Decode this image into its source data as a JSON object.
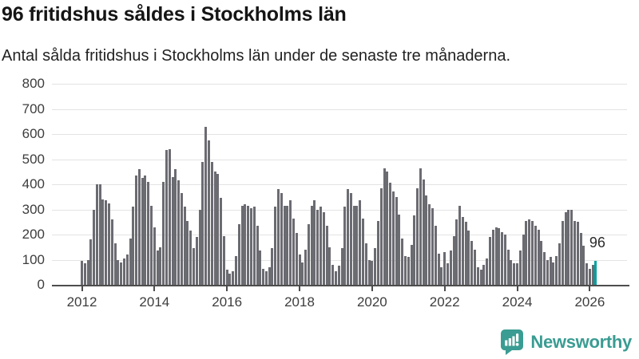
{
  "header": {
    "title": "96 fritidshus såldes i Stockholms län",
    "subtitle": "Antal sålda fritidshus i Stockholms län under de senaste tre månaderna."
  },
  "chart_data": {
    "type": "bar",
    "title": "96 fritidshus såldes i Stockholms län",
    "subtitle": "Antal sålda fritidshus i Stockholms län under de senaste tre månaderna.",
    "x_start_month": "2012-01",
    "x_end_month": "2026-03",
    "values": [
      95,
      85,
      100,
      180,
      300,
      400,
      400,
      340,
      335,
      325,
      260,
      165,
      100,
      90,
      105,
      120,
      185,
      310,
      435,
      460,
      425,
      435,
      410,
      315,
      230,
      135,
      150,
      410,
      535,
      540,
      430,
      460,
      415,
      365,
      310,
      255,
      215,
      145,
      190,
      300,
      490,
      630,
      575,
      490,
      450,
      440,
      345,
      195,
      60,
      45,
      55,
      115,
      240,
      315,
      320,
      315,
      305,
      310,
      235,
      135,
      65,
      55,
      70,
      145,
      310,
      380,
      365,
      315,
      315,
      335,
      265,
      205,
      120,
      90,
      140,
      240,
      315,
      335,
      300,
      310,
      290,
      235,
      150,
      80,
      55,
      75,
      145,
      310,
      380,
      365,
      315,
      315,
      335,
      265,
      165,
      100,
      95,
      145,
      255,
      385,
      465,
      450,
      405,
      370,
      350,
      280,
      185,
      115,
      110,
      160,
      275,
      385,
      465,
      420,
      355,
      320,
      305,
      235,
      125,
      70,
      130,
      85,
      135,
      195,
      260,
      315,
      270,
      250,
      215,
      175,
      140,
      70,
      60,
      80,
      105,
      190,
      220,
      230,
      225,
      210,
      200,
      140,
      100,
      85,
      85,
      135,
      200,
      255,
      260,
      255,
      235,
      220,
      175,
      130,
      100,
      110,
      90,
      115,
      165,
      255,
      290,
      300,
      300,
      255,
      250,
      205,
      155,
      85,
      65,
      80,
      96
    ],
    "latest_value": 96,
    "annotation": "96",
    "highlight_last": true,
    "ylim": [
      0,
      800
    ],
    "yticks": [
      0,
      100,
      200,
      300,
      400,
      500,
      600,
      700,
      800
    ],
    "ytick_labels": [
      "0",
      "100",
      "200",
      "300",
      "400",
      "500",
      "600",
      "700",
      "800"
    ],
    "xtick_labels": [
      "2012",
      "2014",
      "2016",
      "2018",
      "2020",
      "2022",
      "2024",
      "2026"
    ],
    "grid": true,
    "legend": "none",
    "colors": {
      "bar": "#6b6b72",
      "highlight": "#00a1a0",
      "axis": "#4d4d4d",
      "grid": "#e3e3e3",
      "tick_text": "#3d3d3d"
    }
  },
  "footer": {
    "brand": "Newsworthy",
    "brand_color": "#3a9c92",
    "logo_icon": "bar-chart-speech-bubble-icon"
  }
}
